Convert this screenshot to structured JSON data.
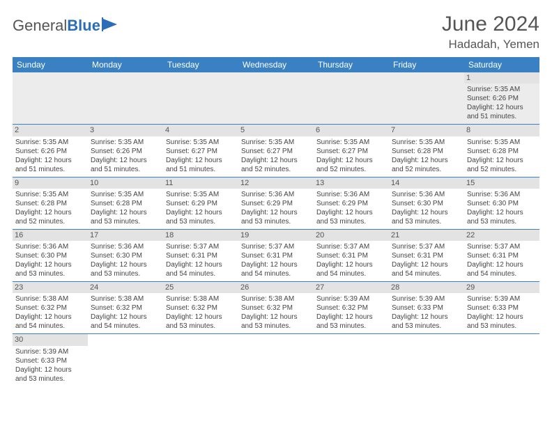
{
  "logo": {
    "text_gray": "General",
    "text_blue": "Blue"
  },
  "title": "June 2024",
  "location": "Hadadah, Yemen",
  "colors": {
    "header_bg": "#3a81c4",
    "header_text": "#ffffff",
    "daynum_bg": "#e3e3e3",
    "border": "#3a81c4",
    "title_color": "#555555"
  },
  "weekdays": [
    "Sunday",
    "Monday",
    "Tuesday",
    "Wednesday",
    "Thursday",
    "Friday",
    "Saturday"
  ],
  "weeks": [
    [
      null,
      null,
      null,
      null,
      null,
      null,
      {
        "n": "1",
        "sr": "Sunrise: 5:35 AM",
        "ss": "Sunset: 6:26 PM",
        "d1": "Daylight: 12 hours",
        "d2": "and 51 minutes."
      }
    ],
    [
      {
        "n": "2",
        "sr": "Sunrise: 5:35 AM",
        "ss": "Sunset: 6:26 PM",
        "d1": "Daylight: 12 hours",
        "d2": "and 51 minutes."
      },
      {
        "n": "3",
        "sr": "Sunrise: 5:35 AM",
        "ss": "Sunset: 6:26 PM",
        "d1": "Daylight: 12 hours",
        "d2": "and 51 minutes."
      },
      {
        "n": "4",
        "sr": "Sunrise: 5:35 AM",
        "ss": "Sunset: 6:27 PM",
        "d1": "Daylight: 12 hours",
        "d2": "and 51 minutes."
      },
      {
        "n": "5",
        "sr": "Sunrise: 5:35 AM",
        "ss": "Sunset: 6:27 PM",
        "d1": "Daylight: 12 hours",
        "d2": "and 52 minutes."
      },
      {
        "n": "6",
        "sr": "Sunrise: 5:35 AM",
        "ss": "Sunset: 6:27 PM",
        "d1": "Daylight: 12 hours",
        "d2": "and 52 minutes."
      },
      {
        "n": "7",
        "sr": "Sunrise: 5:35 AM",
        "ss": "Sunset: 6:28 PM",
        "d1": "Daylight: 12 hours",
        "d2": "and 52 minutes."
      },
      {
        "n": "8",
        "sr": "Sunrise: 5:35 AM",
        "ss": "Sunset: 6:28 PM",
        "d1": "Daylight: 12 hours",
        "d2": "and 52 minutes."
      }
    ],
    [
      {
        "n": "9",
        "sr": "Sunrise: 5:35 AM",
        "ss": "Sunset: 6:28 PM",
        "d1": "Daylight: 12 hours",
        "d2": "and 52 minutes."
      },
      {
        "n": "10",
        "sr": "Sunrise: 5:35 AM",
        "ss": "Sunset: 6:28 PM",
        "d1": "Daylight: 12 hours",
        "d2": "and 53 minutes."
      },
      {
        "n": "11",
        "sr": "Sunrise: 5:35 AM",
        "ss": "Sunset: 6:29 PM",
        "d1": "Daylight: 12 hours",
        "d2": "and 53 minutes."
      },
      {
        "n": "12",
        "sr": "Sunrise: 5:36 AM",
        "ss": "Sunset: 6:29 PM",
        "d1": "Daylight: 12 hours",
        "d2": "and 53 minutes."
      },
      {
        "n": "13",
        "sr": "Sunrise: 5:36 AM",
        "ss": "Sunset: 6:29 PM",
        "d1": "Daylight: 12 hours",
        "d2": "and 53 minutes."
      },
      {
        "n": "14",
        "sr": "Sunrise: 5:36 AM",
        "ss": "Sunset: 6:30 PM",
        "d1": "Daylight: 12 hours",
        "d2": "and 53 minutes."
      },
      {
        "n": "15",
        "sr": "Sunrise: 5:36 AM",
        "ss": "Sunset: 6:30 PM",
        "d1": "Daylight: 12 hours",
        "d2": "and 53 minutes."
      }
    ],
    [
      {
        "n": "16",
        "sr": "Sunrise: 5:36 AM",
        "ss": "Sunset: 6:30 PM",
        "d1": "Daylight: 12 hours",
        "d2": "and 53 minutes."
      },
      {
        "n": "17",
        "sr": "Sunrise: 5:36 AM",
        "ss": "Sunset: 6:30 PM",
        "d1": "Daylight: 12 hours",
        "d2": "and 53 minutes."
      },
      {
        "n": "18",
        "sr": "Sunrise: 5:37 AM",
        "ss": "Sunset: 6:31 PM",
        "d1": "Daylight: 12 hours",
        "d2": "and 54 minutes."
      },
      {
        "n": "19",
        "sr": "Sunrise: 5:37 AM",
        "ss": "Sunset: 6:31 PM",
        "d1": "Daylight: 12 hours",
        "d2": "and 54 minutes."
      },
      {
        "n": "20",
        "sr": "Sunrise: 5:37 AM",
        "ss": "Sunset: 6:31 PM",
        "d1": "Daylight: 12 hours",
        "d2": "and 54 minutes."
      },
      {
        "n": "21",
        "sr": "Sunrise: 5:37 AM",
        "ss": "Sunset: 6:31 PM",
        "d1": "Daylight: 12 hours",
        "d2": "and 54 minutes."
      },
      {
        "n": "22",
        "sr": "Sunrise: 5:37 AM",
        "ss": "Sunset: 6:31 PM",
        "d1": "Daylight: 12 hours",
        "d2": "and 54 minutes."
      }
    ],
    [
      {
        "n": "23",
        "sr": "Sunrise: 5:38 AM",
        "ss": "Sunset: 6:32 PM",
        "d1": "Daylight: 12 hours",
        "d2": "and 54 minutes."
      },
      {
        "n": "24",
        "sr": "Sunrise: 5:38 AM",
        "ss": "Sunset: 6:32 PM",
        "d1": "Daylight: 12 hours",
        "d2": "and 54 minutes."
      },
      {
        "n": "25",
        "sr": "Sunrise: 5:38 AM",
        "ss": "Sunset: 6:32 PM",
        "d1": "Daylight: 12 hours",
        "d2": "and 53 minutes."
      },
      {
        "n": "26",
        "sr": "Sunrise: 5:38 AM",
        "ss": "Sunset: 6:32 PM",
        "d1": "Daylight: 12 hours",
        "d2": "and 53 minutes."
      },
      {
        "n": "27",
        "sr": "Sunrise: 5:39 AM",
        "ss": "Sunset: 6:32 PM",
        "d1": "Daylight: 12 hours",
        "d2": "and 53 minutes."
      },
      {
        "n": "28",
        "sr": "Sunrise: 5:39 AM",
        "ss": "Sunset: 6:33 PM",
        "d1": "Daylight: 12 hours",
        "d2": "and 53 minutes."
      },
      {
        "n": "29",
        "sr": "Sunrise: 5:39 AM",
        "ss": "Sunset: 6:33 PM",
        "d1": "Daylight: 12 hours",
        "d2": "and 53 minutes."
      }
    ],
    [
      {
        "n": "30",
        "sr": "Sunrise: 5:39 AM",
        "ss": "Sunset: 6:33 PM",
        "d1": "Daylight: 12 hours",
        "d2": "and 53 minutes."
      },
      null,
      null,
      null,
      null,
      null,
      null
    ]
  ]
}
